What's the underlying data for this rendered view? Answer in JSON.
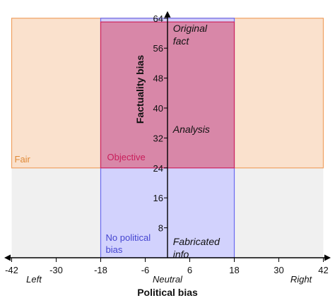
{
  "chart_data": {
    "type": "region",
    "x": {
      "title": "Political bias",
      "range": [
        -44,
        44
      ],
      "ticks": [
        -42,
        -30,
        -18,
        -6,
        6,
        18,
        30,
        42
      ],
      "left_label": "Left",
      "center_label": "Neutral",
      "right_label": "Right"
    },
    "y": {
      "title": "Factuality bias",
      "range": [
        0,
        64
      ],
      "ticks": [
        8,
        16,
        24,
        32,
        40,
        48,
        56,
        64
      ]
    },
    "regions": [
      {
        "label": "Fair",
        "x": [
          -42,
          42
        ],
        "y": [
          24,
          64
        ],
        "fill": "#f9dcc4",
        "stroke": "#f0a060",
        "text_color": "#e08a38"
      },
      {
        "label": "No political bias",
        "label_lines": [
          "No political",
          "bias"
        ],
        "x": [
          -18,
          18
        ],
        "y": [
          0,
          64
        ],
        "fill": "#ccccff",
        "stroke": "#6a6af0",
        "text_color": "#4545d0"
      },
      {
        "label": "Objective",
        "x": [
          -18,
          18
        ],
        "y": [
          24,
          63
        ],
        "fill": "#d87a9a",
        "stroke": "#d0245e",
        "text_color": "#c81e5a"
      }
    ],
    "annotations": [
      {
        "lines": [
          "Original",
          "fact"
        ],
        "x": 3,
        "y": 63
      },
      {
        "lines": [
          "Analysis"
        ],
        "x": 3,
        "y": 36
      },
      {
        "lines": [
          "Fabricated",
          "info"
        ],
        "x": 3,
        "y": 6
      }
    ],
    "below_fair_fill": "#f0f0f0"
  }
}
